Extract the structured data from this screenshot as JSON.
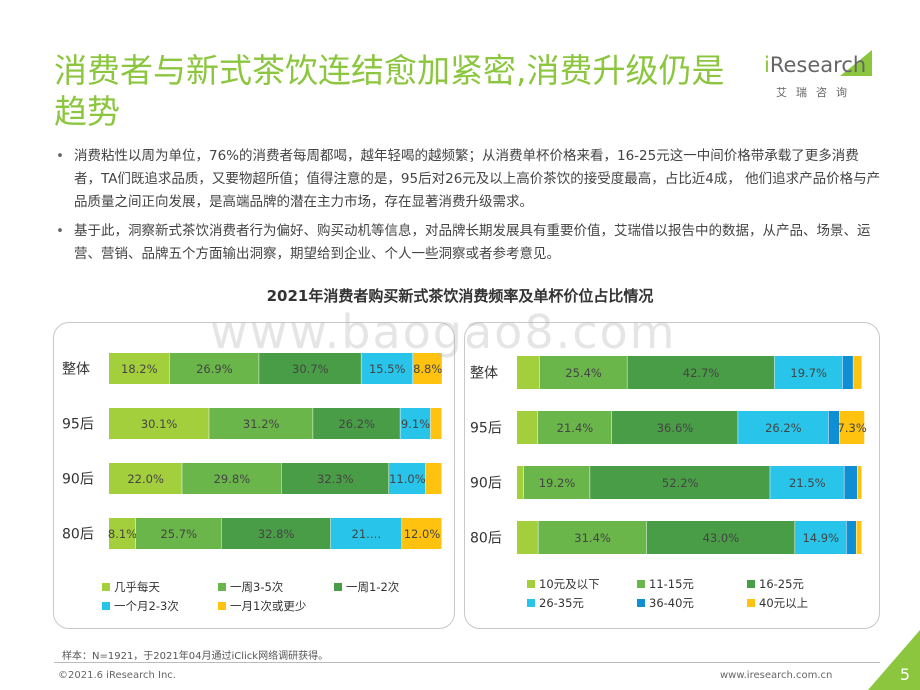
{
  "page": {
    "title": "消费者与新式茶饮连结愈加紧密,消费升级仍是趋势",
    "logo_text": "Research",
    "logo_i": "i",
    "logo_sub": "艾瑞咨询",
    "bullets": [
      "消费粘性以周为单位，76%的消费者每周都喝，越年轻喝的越频繁；从消费单杯价格来看，16-25元这一中间价格带承载了更多消费者，TA们既追求品质，又要物超所值；值得注意的是，95后对26元及以上高价茶饮的接受度最高，占比近4成， 他们追求产品价格与产品质量之间正向发展，是高端品牌的潜在主力市场，存在显著消费升级需求。",
      "基于此，洞察新式茶饮消费者行为偏好、购买动机等信息，对品牌长期发展具有重要价值，艾瑞借以报告中的数据，从产品、场景、运营、营销、品牌五个方面输出洞察，期望给到企业、个人一些洞察或者参考意见。"
    ],
    "chart_title": "2021年消费者购买新式茶饮消费频率及单杯价位占比情况",
    "watermark": "www.baogao8.com",
    "footnote": "样本：N=1921，于2021年04月通过iClick网络调研获得。",
    "copyright": "©2021.6 iResearch Inc.",
    "site": "www.iresearch.com.cn",
    "page_number": "5"
  },
  "colors": {
    "brand_green": "#8cc63f",
    "c1": "#a4cf3c",
    "c2": "#6ab64a",
    "c3": "#4a9d47",
    "c4": "#29c4ea",
    "c5": "#0e8fd4",
    "c6": "#ffc20e"
  },
  "chart_data": [
    {
      "type": "bar",
      "orientation": "horizontal",
      "stacked": true,
      "categories": [
        "整体",
        "95后",
        "90后",
        "80后"
      ],
      "series": [
        {
          "name": "几乎每天",
          "color": "#a4cf3c",
          "values": [
            18.2,
            30.1,
            22.0,
            8.1
          ]
        },
        {
          "name": "一周3-5次",
          "color": "#6ab64a",
          "values": [
            26.9,
            31.2,
            29.8,
            25.7
          ]
        },
        {
          "name": "一周1-2次",
          "color": "#4a9d47",
          "values": [
            30.7,
            26.2,
            32.3,
            32.8
          ]
        },
        {
          "name": "一个月2-3次",
          "color": "#29c4ea",
          "values": [
            15.5,
            9.1,
            11.0,
            21.4
          ]
        },
        {
          "name": "一月1次或更少",
          "color": "#ffc20e",
          "values": [
            8.8,
            3.4,
            4.9,
            12.0
          ]
        }
      ],
      "labels": [
        [
          "18.2%",
          "26.9%",
          "30.7%",
          "15.5%",
          "8.8%"
        ],
        [
          "30.1%",
          "31.2%",
          "26.2%",
          "9.1%",
          ""
        ],
        [
          "22.0%",
          "29.8%",
          "32.3%",
          "11.0%",
          ""
        ],
        [
          "8.1%",
          "25.7%",
          "32.8%",
          "21.…",
          "12.0%"
        ]
      ],
      "xlim": [
        0,
        100
      ],
      "legend_position": "bottom"
    },
    {
      "type": "bar",
      "orientation": "horizontal",
      "stacked": true,
      "categories": [
        "整体",
        "95后",
        "90后",
        "80后"
      ],
      "series": [
        {
          "name": "10元及以下",
          "color": "#a4cf3c",
          "values": [
            6.6,
            6.1,
            2.0,
            6.2
          ]
        },
        {
          "name": "11-15元",
          "color": "#6ab64a",
          "values": [
            25.4,
            21.4,
            19.2,
            31.4
          ]
        },
        {
          "name": "16-25元",
          "color": "#4a9d47",
          "values": [
            42.7,
            36.6,
            52.2,
            43.0
          ]
        },
        {
          "name": "26-35元",
          "color": "#29c4ea",
          "values": [
            19.7,
            26.2,
            21.5,
            14.9
          ]
        },
        {
          "name": "36-40元",
          "color": "#0e8fd4",
          "values": [
            3.1,
            3.2,
            3.8,
            2.9
          ]
        },
        {
          "name": "40元以上",
          "color": "#ffc20e",
          "values": [
            2.5,
            7.3,
            1.3,
            1.6
          ]
        }
      ],
      "labels": [
        [
          "",
          "25.4%",
          "42.7%",
          "19.7%",
          "",
          ""
        ],
        [
          "",
          "21.4%",
          "36.6%",
          "26.2%",
          "",
          "7.3%"
        ],
        [
          "",
          "19.2%",
          "52.2%",
          "21.5%",
          "",
          ""
        ],
        [
          "",
          "31.4%",
          "43.0%",
          "14.9%",
          "",
          ""
        ]
      ],
      "xlim": [
        0,
        100
      ],
      "legend_position": "bottom"
    }
  ]
}
